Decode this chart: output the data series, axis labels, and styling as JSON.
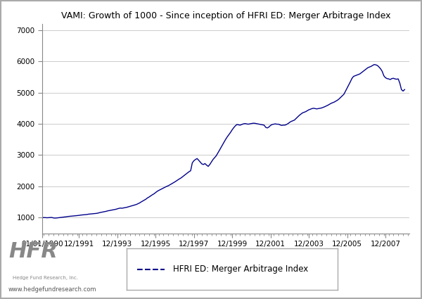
{
  "title": "VAMI: Growth of 1000 - Since inception of HFRI ED: Merger Arbitrage Index",
  "line_color": "#00008B",
  "line_width": 1.0,
  "background_color": "#ffffff",
  "grid_color": "#cccccc",
  "ylabel_values": [
    1000,
    2000,
    3000,
    4000,
    5000,
    6000,
    7000
  ],
  "ylim": [
    500,
    7200
  ],
  "legend_label": "HFRI ED: Merger Arbitrage Index",
  "x_tick_labels": [
    "01/01/1990",
    "12/1991",
    "12/1993",
    "12/1995",
    "12/1997",
    "12/1999",
    "12/2001",
    "12/2003",
    "12/2005",
    "12/2007"
  ],
  "watermark_text": "www.hedgefundresearch.com",
  "hfr_logo_text": "HFR",
  "hfr_sub_text": "Hedge Fund Research, Inc.",
  "outer_border_color": "#aaaaaa",
  "data_points": [
    [
      1990,
      1,
      1000
    ],
    [
      1990,
      2,
      1000
    ],
    [
      1990,
      3,
      1000
    ],
    [
      1990,
      4,
      995
    ],
    [
      1990,
      5,
      998
    ],
    [
      1990,
      6,
      1002
    ],
    [
      1990,
      7,
      1005
    ],
    [
      1990,
      8,
      990
    ],
    [
      1990,
      9,
      985
    ],
    [
      1990,
      10,
      988
    ],
    [
      1990,
      11,
      995
    ],
    [
      1990,
      12,
      1000
    ],
    [
      1991,
      1,
      1010
    ],
    [
      1991,
      2,
      1015
    ],
    [
      1991,
      3,
      1020
    ],
    [
      1991,
      4,
      1025
    ],
    [
      1991,
      5,
      1035
    ],
    [
      1991,
      6,
      1040
    ],
    [
      1991,
      7,
      1045
    ],
    [
      1991,
      8,
      1050
    ],
    [
      1991,
      9,
      1055
    ],
    [
      1991,
      10,
      1060
    ],
    [
      1991,
      11,
      1065
    ],
    [
      1991,
      12,
      1070
    ],
    [
      1992,
      1,
      1080
    ],
    [
      1992,
      2,
      1085
    ],
    [
      1992,
      3,
      1090
    ],
    [
      1992,
      4,
      1095
    ],
    [
      1992,
      5,
      1100
    ],
    [
      1992,
      6,
      1110
    ],
    [
      1992,
      7,
      1115
    ],
    [
      1992,
      8,
      1120
    ],
    [
      1992,
      9,
      1125
    ],
    [
      1992,
      10,
      1130
    ],
    [
      1992,
      11,
      1135
    ],
    [
      1992,
      12,
      1145
    ],
    [
      1993,
      1,
      1160
    ],
    [
      1993,
      2,
      1170
    ],
    [
      1993,
      3,
      1180
    ],
    [
      1993,
      4,
      1190
    ],
    [
      1993,
      5,
      1200
    ],
    [
      1993,
      6,
      1215
    ],
    [
      1993,
      7,
      1225
    ],
    [
      1993,
      8,
      1235
    ],
    [
      1993,
      9,
      1245
    ],
    [
      1993,
      10,
      1255
    ],
    [
      1993,
      11,
      1265
    ],
    [
      1993,
      12,
      1280
    ],
    [
      1994,
      1,
      1295
    ],
    [
      1994,
      2,
      1305
    ],
    [
      1994,
      3,
      1300
    ],
    [
      1994,
      4,
      1310
    ],
    [
      1994,
      5,
      1320
    ],
    [
      1994,
      6,
      1330
    ],
    [
      1994,
      7,
      1345
    ],
    [
      1994,
      8,
      1360
    ],
    [
      1994,
      9,
      1375
    ],
    [
      1994,
      10,
      1390
    ],
    [
      1994,
      11,
      1405
    ],
    [
      1994,
      12,
      1420
    ],
    [
      1995,
      1,
      1445
    ],
    [
      1995,
      2,
      1470
    ],
    [
      1995,
      3,
      1500
    ],
    [
      1995,
      4,
      1530
    ],
    [
      1995,
      5,
      1560
    ],
    [
      1995,
      6,
      1590
    ],
    [
      1995,
      7,
      1630
    ],
    [
      1995,
      8,
      1660
    ],
    [
      1995,
      9,
      1695
    ],
    [
      1995,
      10,
      1730
    ],
    [
      1995,
      11,
      1760
    ],
    [
      1995,
      12,
      1800
    ],
    [
      1996,
      1,
      1840
    ],
    [
      1996,
      2,
      1870
    ],
    [
      1996,
      3,
      1895
    ],
    [
      1996,
      4,
      1920
    ],
    [
      1996,
      5,
      1950
    ],
    [
      1996,
      6,
      1975
    ],
    [
      1996,
      7,
      2000
    ],
    [
      1996,
      8,
      2020
    ],
    [
      1996,
      9,
      2050
    ],
    [
      1996,
      10,
      2080
    ],
    [
      1996,
      11,
      2110
    ],
    [
      1996,
      12,
      2140
    ],
    [
      1997,
      1,
      2175
    ],
    [
      1997,
      2,
      2210
    ],
    [
      1997,
      3,
      2240
    ],
    [
      1997,
      4,
      2270
    ],
    [
      1997,
      5,
      2310
    ],
    [
      1997,
      6,
      2350
    ],
    [
      1997,
      7,
      2390
    ],
    [
      1997,
      8,
      2430
    ],
    [
      1997,
      9,
      2470
    ],
    [
      1997,
      10,
      2500
    ],
    [
      1997,
      11,
      2750
    ],
    [
      1997,
      12,
      2820
    ],
    [
      1998,
      1,
      2860
    ],
    [
      1998,
      2,
      2890
    ],
    [
      1998,
      3,
      2840
    ],
    [
      1998,
      4,
      2780
    ],
    [
      1998,
      5,
      2720
    ],
    [
      1998,
      6,
      2700
    ],
    [
      1998,
      7,
      2730
    ],
    [
      1998,
      8,
      2680
    ],
    [
      1998,
      9,
      2640
    ],
    [
      1998,
      10,
      2700
    ],
    [
      1998,
      11,
      2780
    ],
    [
      1998,
      12,
      2860
    ],
    [
      1999,
      1,
      2920
    ],
    [
      1999,
      2,
      2980
    ],
    [
      1999,
      3,
      3060
    ],
    [
      1999,
      4,
      3150
    ],
    [
      1999,
      5,
      3240
    ],
    [
      1999,
      6,
      3330
    ],
    [
      1999,
      7,
      3420
    ],
    [
      1999,
      8,
      3510
    ],
    [
      1999,
      9,
      3590
    ],
    [
      1999,
      10,
      3660
    ],
    [
      1999,
      11,
      3730
    ],
    [
      1999,
      12,
      3810
    ],
    [
      2000,
      1,
      3880
    ],
    [
      2000,
      2,
      3940
    ],
    [
      2000,
      3,
      3980
    ],
    [
      2000,
      4,
      3970
    ],
    [
      2000,
      5,
      3960
    ],
    [
      2000,
      6,
      3980
    ],
    [
      2000,
      7,
      4000
    ],
    [
      2000,
      8,
      4010
    ],
    [
      2000,
      9,
      4000
    ],
    [
      2000,
      10,
      3990
    ],
    [
      2000,
      11,
      4000
    ],
    [
      2000,
      12,
      4010
    ],
    [
      2001,
      1,
      4020
    ],
    [
      2001,
      2,
      4020
    ],
    [
      2001,
      3,
      4010
    ],
    [
      2001,
      4,
      4000
    ],
    [
      2001,
      5,
      3990
    ],
    [
      2001,
      6,
      3980
    ],
    [
      2001,
      7,
      3970
    ],
    [
      2001,
      8,
      3960
    ],
    [
      2001,
      9,
      3890
    ],
    [
      2001,
      10,
      3870
    ],
    [
      2001,
      11,
      3900
    ],
    [
      2001,
      12,
      3950
    ],
    [
      2002,
      1,
      3980
    ],
    [
      2002,
      2,
      3990
    ],
    [
      2002,
      3,
      4000
    ],
    [
      2002,
      4,
      3990
    ],
    [
      2002,
      5,
      3990
    ],
    [
      2002,
      6,
      3970
    ],
    [
      2002,
      7,
      3950
    ],
    [
      2002,
      8,
      3960
    ],
    [
      2002,
      9,
      3960
    ],
    [
      2002,
      10,
      3980
    ],
    [
      2002,
      11,
      4010
    ],
    [
      2002,
      12,
      4050
    ],
    [
      2003,
      1,
      4080
    ],
    [
      2003,
      2,
      4100
    ],
    [
      2003,
      3,
      4120
    ],
    [
      2003,
      4,
      4170
    ],
    [
      2003,
      5,
      4220
    ],
    [
      2003,
      6,
      4270
    ],
    [
      2003,
      7,
      4310
    ],
    [
      2003,
      8,
      4350
    ],
    [
      2003,
      9,
      4370
    ],
    [
      2003,
      10,
      4390
    ],
    [
      2003,
      11,
      4420
    ],
    [
      2003,
      12,
      4450
    ],
    [
      2004,
      1,
      4470
    ],
    [
      2004,
      2,
      4490
    ],
    [
      2004,
      3,
      4500
    ],
    [
      2004,
      4,
      4490
    ],
    [
      2004,
      5,
      4480
    ],
    [
      2004,
      6,
      4490
    ],
    [
      2004,
      7,
      4500
    ],
    [
      2004,
      8,
      4510
    ],
    [
      2004,
      9,
      4530
    ],
    [
      2004,
      10,
      4550
    ],
    [
      2004,
      11,
      4575
    ],
    [
      2004,
      12,
      4600
    ],
    [
      2005,
      1,
      4630
    ],
    [
      2005,
      2,
      4660
    ],
    [
      2005,
      3,
      4680
    ],
    [
      2005,
      4,
      4700
    ],
    [
      2005,
      5,
      4730
    ],
    [
      2005,
      6,
      4760
    ],
    [
      2005,
      7,
      4800
    ],
    [
      2005,
      8,
      4850
    ],
    [
      2005,
      9,
      4900
    ],
    [
      2005,
      10,
      4950
    ],
    [
      2005,
      11,
      5050
    ],
    [
      2005,
      12,
      5150
    ],
    [
      2006,
      1,
      5250
    ],
    [
      2006,
      2,
      5350
    ],
    [
      2006,
      3,
      5450
    ],
    [
      2006,
      4,
      5520
    ],
    [
      2006,
      5,
      5540
    ],
    [
      2006,
      6,
      5560
    ],
    [
      2006,
      7,
      5580
    ],
    [
      2006,
      8,
      5600
    ],
    [
      2006,
      9,
      5640
    ],
    [
      2006,
      10,
      5680
    ],
    [
      2006,
      11,
      5720
    ],
    [
      2006,
      12,
      5760
    ],
    [
      2007,
      1,
      5800
    ],
    [
      2007,
      2,
      5820
    ],
    [
      2007,
      3,
      5840
    ],
    [
      2007,
      4,
      5870
    ],
    [
      2007,
      5,
      5900
    ],
    [
      2007,
      6,
      5890
    ],
    [
      2007,
      7,
      5870
    ],
    [
      2007,
      8,
      5820
    ],
    [
      2007,
      9,
      5760
    ],
    [
      2007,
      10,
      5680
    ],
    [
      2007,
      11,
      5540
    ],
    [
      2007,
      12,
      5480
    ],
    [
      2008,
      1,
      5450
    ],
    [
      2008,
      2,
      5440
    ],
    [
      2008,
      3,
      5420
    ],
    [
      2008,
      4,
      5450
    ],
    [
      2008,
      5,
      5460
    ],
    [
      2008,
      6,
      5440
    ],
    [
      2008,
      7,
      5430
    ],
    [
      2008,
      8,
      5440
    ],
    [
      2008,
      9,
      5300
    ],
    [
      2008,
      10,
      5100
    ],
    [
      2008,
      11,
      5050
    ],
    [
      2008,
      12,
      5100
    ]
  ]
}
